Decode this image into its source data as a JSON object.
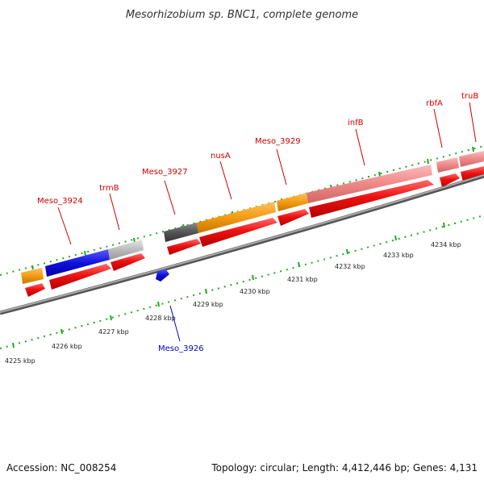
{
  "title": "Mesorhizobium sp. BNC1, complete genome",
  "footer": {
    "accession": "Accession: NC_008254",
    "summary": "Topology: circular; Length: 4,412,446 bp; Genes: 4,131"
  },
  "colors": {
    "backbone": "#808080",
    "tick_green": "#22aa22",
    "label_red": "#cc0000",
    "label_blue": "#0000cc",
    "gene_red": "#ee1111",
    "gene_blue": "#1111dd",
    "orange": "#f39c12",
    "salmon": "#ee8888",
    "gray_dark": "#555555",
    "gray_light": "#bbbbbb"
  },
  "gene_labels": [
    {
      "name": "Meso_3924",
      "strand": "plus"
    },
    {
      "name": "trmB",
      "strand": "plus"
    },
    {
      "name": "Meso_3927",
      "strand": "plus"
    },
    {
      "name": "nusA",
      "strand": "plus"
    },
    {
      "name": "Meso_3929",
      "strand": "plus"
    },
    {
      "name": "infB",
      "strand": "plus"
    },
    {
      "name": "rbfA",
      "strand": "plus"
    },
    {
      "name": "truB",
      "strand": "plus"
    },
    {
      "name": "Meso_3926",
      "strand": "minus"
    }
  ],
  "scale_ticks": [
    {
      "label": "4225 kbp"
    },
    {
      "label": "4226 kbp"
    },
    {
      "label": "4227 kbp"
    },
    {
      "label": "4228 kbp"
    },
    {
      "label": "4229 kbp"
    },
    {
      "label": "4230 kbp"
    },
    {
      "label": "4231 kbp"
    },
    {
      "label": "4232 kbp"
    },
    {
      "label": "4233 kbp"
    },
    {
      "label": "4234 kbp"
    }
  ]
}
